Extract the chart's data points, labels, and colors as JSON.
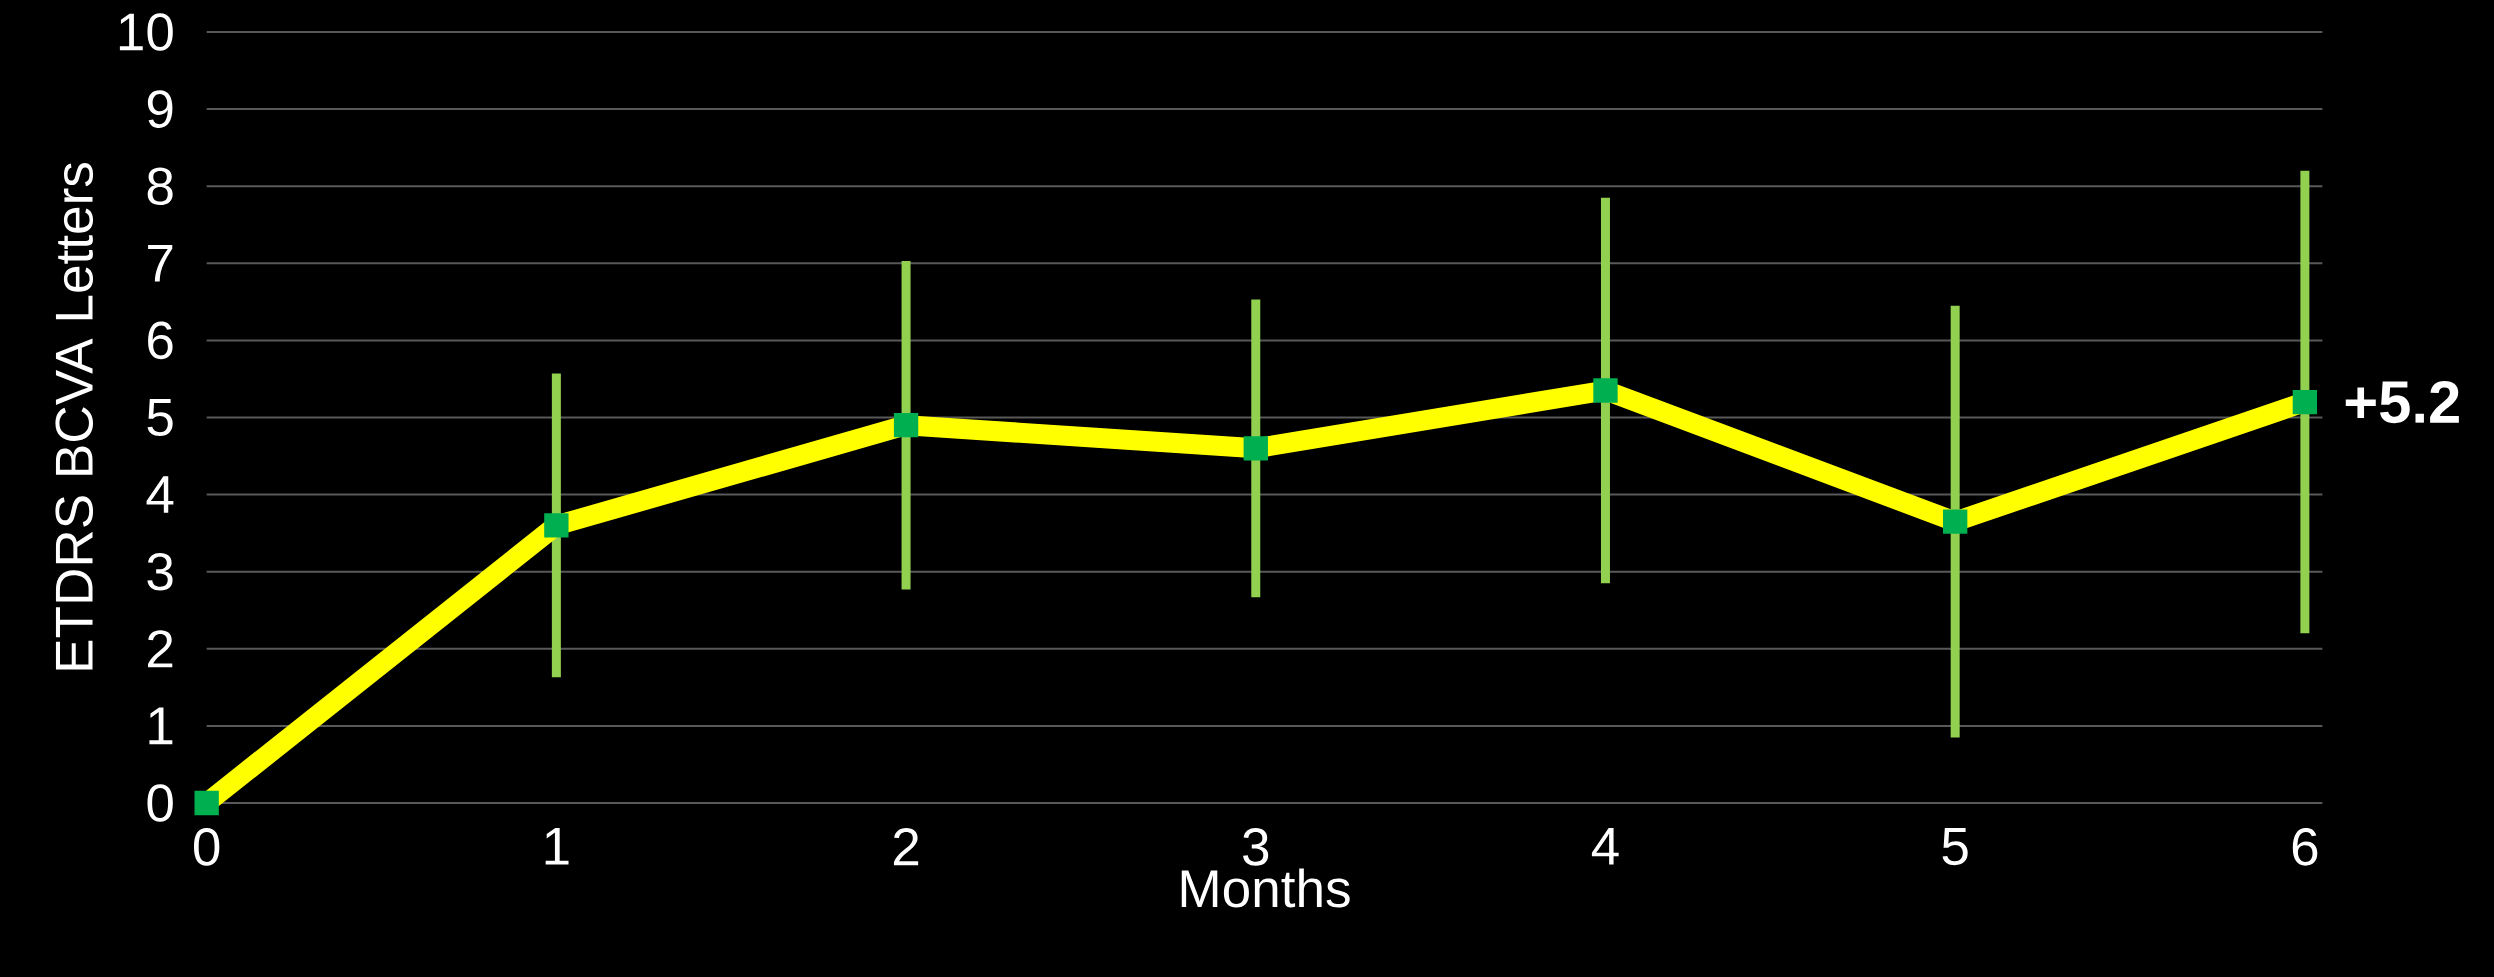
{
  "chart_data": {
    "type": "line",
    "xlabel": "Months",
    "ylabel": "ETDRS BCVA Letters",
    "x": [
      0,
      1,
      2,
      3,
      4,
      5,
      6
    ],
    "series": [
      {
        "color": "#ffff00",
        "values": [
          0,
          3.6,
          4.9,
          4.6,
          5.35,
          3.65,
          5.2
        ],
        "errors": [
          null,
          1.97,
          2.13,
          1.93,
          2.5,
          2.8,
          3.0
        ]
      }
    ],
    "annotations": [
      {
        "text": "+5.2",
        "x": 6,
        "y": 5.2
      }
    ],
    "xlim": [
      0,
      6.05
    ],
    "xticks": [
      0,
      1,
      2,
      3,
      4,
      5,
      6
    ],
    "ylim": [
      0,
      10
    ],
    "yticks": [
      0,
      1,
      2,
      3,
      4,
      5,
      6,
      7,
      8,
      9,
      10
    ],
    "grid": "y",
    "marker": "square",
    "line_style": "solid"
  }
}
